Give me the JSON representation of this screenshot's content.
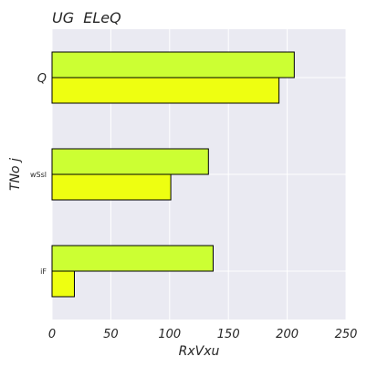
{
  "chart_data": {
    "type": "bar",
    "orientation": "horizontal",
    "title": "UG  ELeQ",
    "xlabel": "RxVxu",
    "ylabel": "TNo j",
    "categories": [
      "Q",
      "wSsl",
      "iF"
    ],
    "series": [
      {
        "color": "#ccff33",
        "values": [
          206,
          133,
          137
        ]
      },
      {
        "color": "#eeff11",
        "values": [
          193,
          101,
          19
        ]
      }
    ],
    "xlim": [
      0,
      250
    ],
    "xticks": [
      "0",
      "50",
      "100",
      "150",
      "200",
      "250"
    ],
    "grid": true,
    "legend": "none",
    "colors": {
      "background": "#eaeaf2",
      "grid": "#ffffff",
      "bar_edge": "#000000"
    }
  }
}
